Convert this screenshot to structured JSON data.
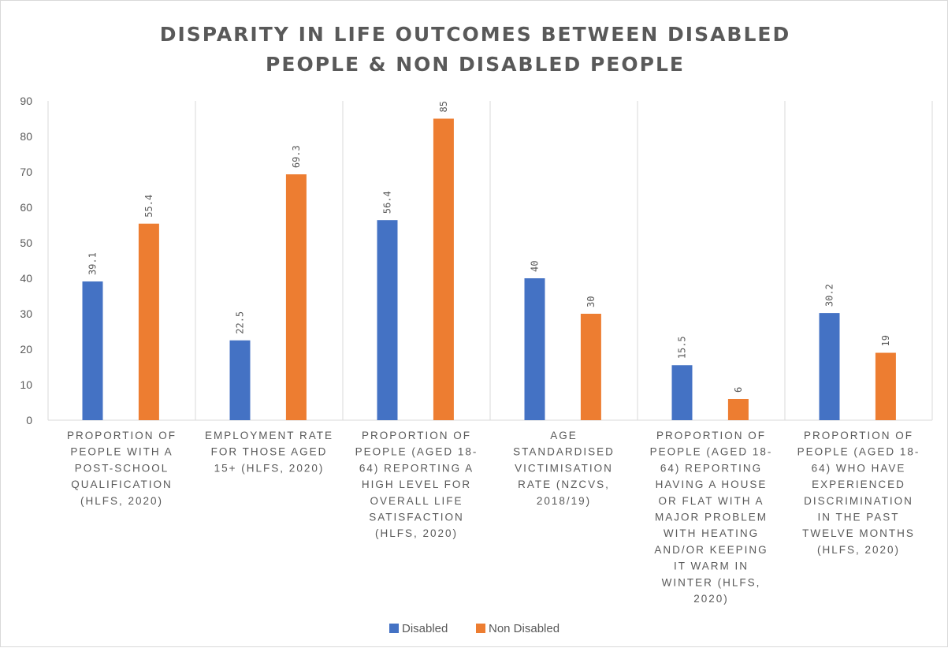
{
  "chart_data": {
    "type": "bar",
    "title_lines": [
      "DISPARITY IN LIFE OUTCOMES BETWEEN DISABLED",
      "PEOPLE & NON DISABLED PEOPLE"
    ],
    "categories": [
      [
        "PROPORTION OF",
        "PEOPLE WITH A",
        "POST-SCHOOL",
        "QUALIFICATION",
        "(HLFS, 2020)"
      ],
      [
        "EMPLOYMENT RATE",
        "FOR THOSE AGED",
        "15+ (HLFS, 2020)"
      ],
      [
        "PROPORTION OF",
        "PEOPLE (AGED 18-",
        "64) REPORTING A",
        "HIGH LEVEL FOR",
        "OVERALL LIFE",
        "SATISFACTION",
        "(HLFS, 2020)"
      ],
      [
        "AGE",
        "STANDARDISED",
        "VICTIMISATION",
        "RATE (NZCVS,",
        "2018/19)"
      ],
      [
        "PROPORTION OF",
        "PEOPLE (AGED 18-",
        "64) REPORTING",
        "HAVING A HOUSE",
        "OR FLAT WITH A",
        "MAJOR PROBLEM",
        "WITH HEATING",
        "AND/OR KEEPING",
        "IT WARM IN",
        "WINTER  (HLFS,",
        "2020)"
      ],
      [
        "PROPORTION OF",
        "PEOPLE (AGED 18-",
        "64) WHO HAVE",
        "EXPERIENCED",
        "DISCRIMINATION",
        "IN THE PAST",
        "TWELVE MONTHS",
        "(HLFS, 2020)"
      ]
    ],
    "series": [
      {
        "name": "Disabled",
        "color": "#4472c4",
        "values": [
          39.1,
          22.5,
          56.4,
          40,
          15.5,
          30.2
        ],
        "labels": [
          "39.1",
          "22.5",
          "56.4",
          "40",
          "15.5",
          "30.2"
        ]
      },
      {
        "name": "Non Disabled",
        "color": "#ed7d31",
        "values": [
          55.4,
          69.3,
          85,
          30,
          6,
          19
        ],
        "labels": [
          "55.4",
          "69.3",
          "85",
          "30",
          "6",
          "19"
        ]
      }
    ],
    "ylim": [
      0,
      90
    ],
    "yticks": [
      "0",
      "10",
      "20",
      "30",
      "40",
      "50",
      "60",
      "70",
      "80",
      "90"
    ],
    "grid": "vertical category separators",
    "legend": "bottom-center"
  }
}
